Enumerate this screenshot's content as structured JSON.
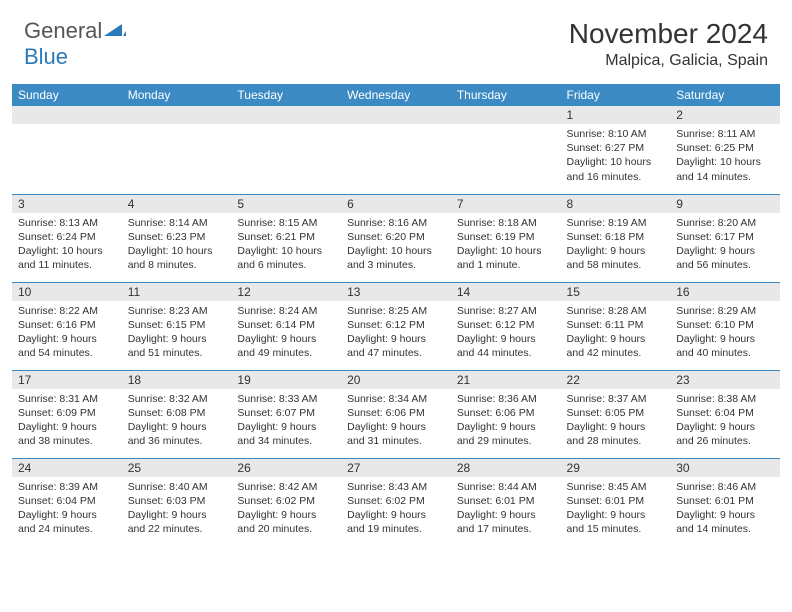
{
  "logo": {
    "text1": "General",
    "text2": "Blue"
  },
  "title": "November 2024",
  "location": "Malpica, Galicia, Spain",
  "colors": {
    "header_bg": "#3b8ac4",
    "header_text": "#ffffff",
    "daynum_bg": "#e8e8e8",
    "cell_border": "#3b8ac4",
    "logo_blue": "#2a7ab9",
    "logo_gray": "#555555"
  },
  "weekdays": [
    "Sunday",
    "Monday",
    "Tuesday",
    "Wednesday",
    "Thursday",
    "Friday",
    "Saturday"
  ],
  "weeks": [
    [
      {
        "n": "",
        "sr": "",
        "ss": "",
        "dl": ""
      },
      {
        "n": "",
        "sr": "",
        "ss": "",
        "dl": ""
      },
      {
        "n": "",
        "sr": "",
        "ss": "",
        "dl": ""
      },
      {
        "n": "",
        "sr": "",
        "ss": "",
        "dl": ""
      },
      {
        "n": "",
        "sr": "",
        "ss": "",
        "dl": ""
      },
      {
        "n": "1",
        "sr": "Sunrise: 8:10 AM",
        "ss": "Sunset: 6:27 PM",
        "dl": "Daylight: 10 hours and 16 minutes."
      },
      {
        "n": "2",
        "sr": "Sunrise: 8:11 AM",
        "ss": "Sunset: 6:25 PM",
        "dl": "Daylight: 10 hours and 14 minutes."
      }
    ],
    [
      {
        "n": "3",
        "sr": "Sunrise: 8:13 AM",
        "ss": "Sunset: 6:24 PM",
        "dl": "Daylight: 10 hours and 11 minutes."
      },
      {
        "n": "4",
        "sr": "Sunrise: 8:14 AM",
        "ss": "Sunset: 6:23 PM",
        "dl": "Daylight: 10 hours and 8 minutes."
      },
      {
        "n": "5",
        "sr": "Sunrise: 8:15 AM",
        "ss": "Sunset: 6:21 PM",
        "dl": "Daylight: 10 hours and 6 minutes."
      },
      {
        "n": "6",
        "sr": "Sunrise: 8:16 AM",
        "ss": "Sunset: 6:20 PM",
        "dl": "Daylight: 10 hours and 3 minutes."
      },
      {
        "n": "7",
        "sr": "Sunrise: 8:18 AM",
        "ss": "Sunset: 6:19 PM",
        "dl": "Daylight: 10 hours and 1 minute."
      },
      {
        "n": "8",
        "sr": "Sunrise: 8:19 AM",
        "ss": "Sunset: 6:18 PM",
        "dl": "Daylight: 9 hours and 58 minutes."
      },
      {
        "n": "9",
        "sr": "Sunrise: 8:20 AM",
        "ss": "Sunset: 6:17 PM",
        "dl": "Daylight: 9 hours and 56 minutes."
      }
    ],
    [
      {
        "n": "10",
        "sr": "Sunrise: 8:22 AM",
        "ss": "Sunset: 6:16 PM",
        "dl": "Daylight: 9 hours and 54 minutes."
      },
      {
        "n": "11",
        "sr": "Sunrise: 8:23 AM",
        "ss": "Sunset: 6:15 PM",
        "dl": "Daylight: 9 hours and 51 minutes."
      },
      {
        "n": "12",
        "sr": "Sunrise: 8:24 AM",
        "ss": "Sunset: 6:14 PM",
        "dl": "Daylight: 9 hours and 49 minutes."
      },
      {
        "n": "13",
        "sr": "Sunrise: 8:25 AM",
        "ss": "Sunset: 6:12 PM",
        "dl": "Daylight: 9 hours and 47 minutes."
      },
      {
        "n": "14",
        "sr": "Sunrise: 8:27 AM",
        "ss": "Sunset: 6:12 PM",
        "dl": "Daylight: 9 hours and 44 minutes."
      },
      {
        "n": "15",
        "sr": "Sunrise: 8:28 AM",
        "ss": "Sunset: 6:11 PM",
        "dl": "Daylight: 9 hours and 42 minutes."
      },
      {
        "n": "16",
        "sr": "Sunrise: 8:29 AM",
        "ss": "Sunset: 6:10 PM",
        "dl": "Daylight: 9 hours and 40 minutes."
      }
    ],
    [
      {
        "n": "17",
        "sr": "Sunrise: 8:31 AM",
        "ss": "Sunset: 6:09 PM",
        "dl": "Daylight: 9 hours and 38 minutes."
      },
      {
        "n": "18",
        "sr": "Sunrise: 8:32 AM",
        "ss": "Sunset: 6:08 PM",
        "dl": "Daylight: 9 hours and 36 minutes."
      },
      {
        "n": "19",
        "sr": "Sunrise: 8:33 AM",
        "ss": "Sunset: 6:07 PM",
        "dl": "Daylight: 9 hours and 34 minutes."
      },
      {
        "n": "20",
        "sr": "Sunrise: 8:34 AM",
        "ss": "Sunset: 6:06 PM",
        "dl": "Daylight: 9 hours and 31 minutes."
      },
      {
        "n": "21",
        "sr": "Sunrise: 8:36 AM",
        "ss": "Sunset: 6:06 PM",
        "dl": "Daylight: 9 hours and 29 minutes."
      },
      {
        "n": "22",
        "sr": "Sunrise: 8:37 AM",
        "ss": "Sunset: 6:05 PM",
        "dl": "Daylight: 9 hours and 28 minutes."
      },
      {
        "n": "23",
        "sr": "Sunrise: 8:38 AM",
        "ss": "Sunset: 6:04 PM",
        "dl": "Daylight: 9 hours and 26 minutes."
      }
    ],
    [
      {
        "n": "24",
        "sr": "Sunrise: 8:39 AM",
        "ss": "Sunset: 6:04 PM",
        "dl": "Daylight: 9 hours and 24 minutes."
      },
      {
        "n": "25",
        "sr": "Sunrise: 8:40 AM",
        "ss": "Sunset: 6:03 PM",
        "dl": "Daylight: 9 hours and 22 minutes."
      },
      {
        "n": "26",
        "sr": "Sunrise: 8:42 AM",
        "ss": "Sunset: 6:02 PM",
        "dl": "Daylight: 9 hours and 20 minutes."
      },
      {
        "n": "27",
        "sr": "Sunrise: 8:43 AM",
        "ss": "Sunset: 6:02 PM",
        "dl": "Daylight: 9 hours and 19 minutes."
      },
      {
        "n": "28",
        "sr": "Sunrise: 8:44 AM",
        "ss": "Sunset: 6:01 PM",
        "dl": "Daylight: 9 hours and 17 minutes."
      },
      {
        "n": "29",
        "sr": "Sunrise: 8:45 AM",
        "ss": "Sunset: 6:01 PM",
        "dl": "Daylight: 9 hours and 15 minutes."
      },
      {
        "n": "30",
        "sr": "Sunrise: 8:46 AM",
        "ss": "Sunset: 6:01 PM",
        "dl": "Daylight: 9 hours and 14 minutes."
      }
    ]
  ]
}
